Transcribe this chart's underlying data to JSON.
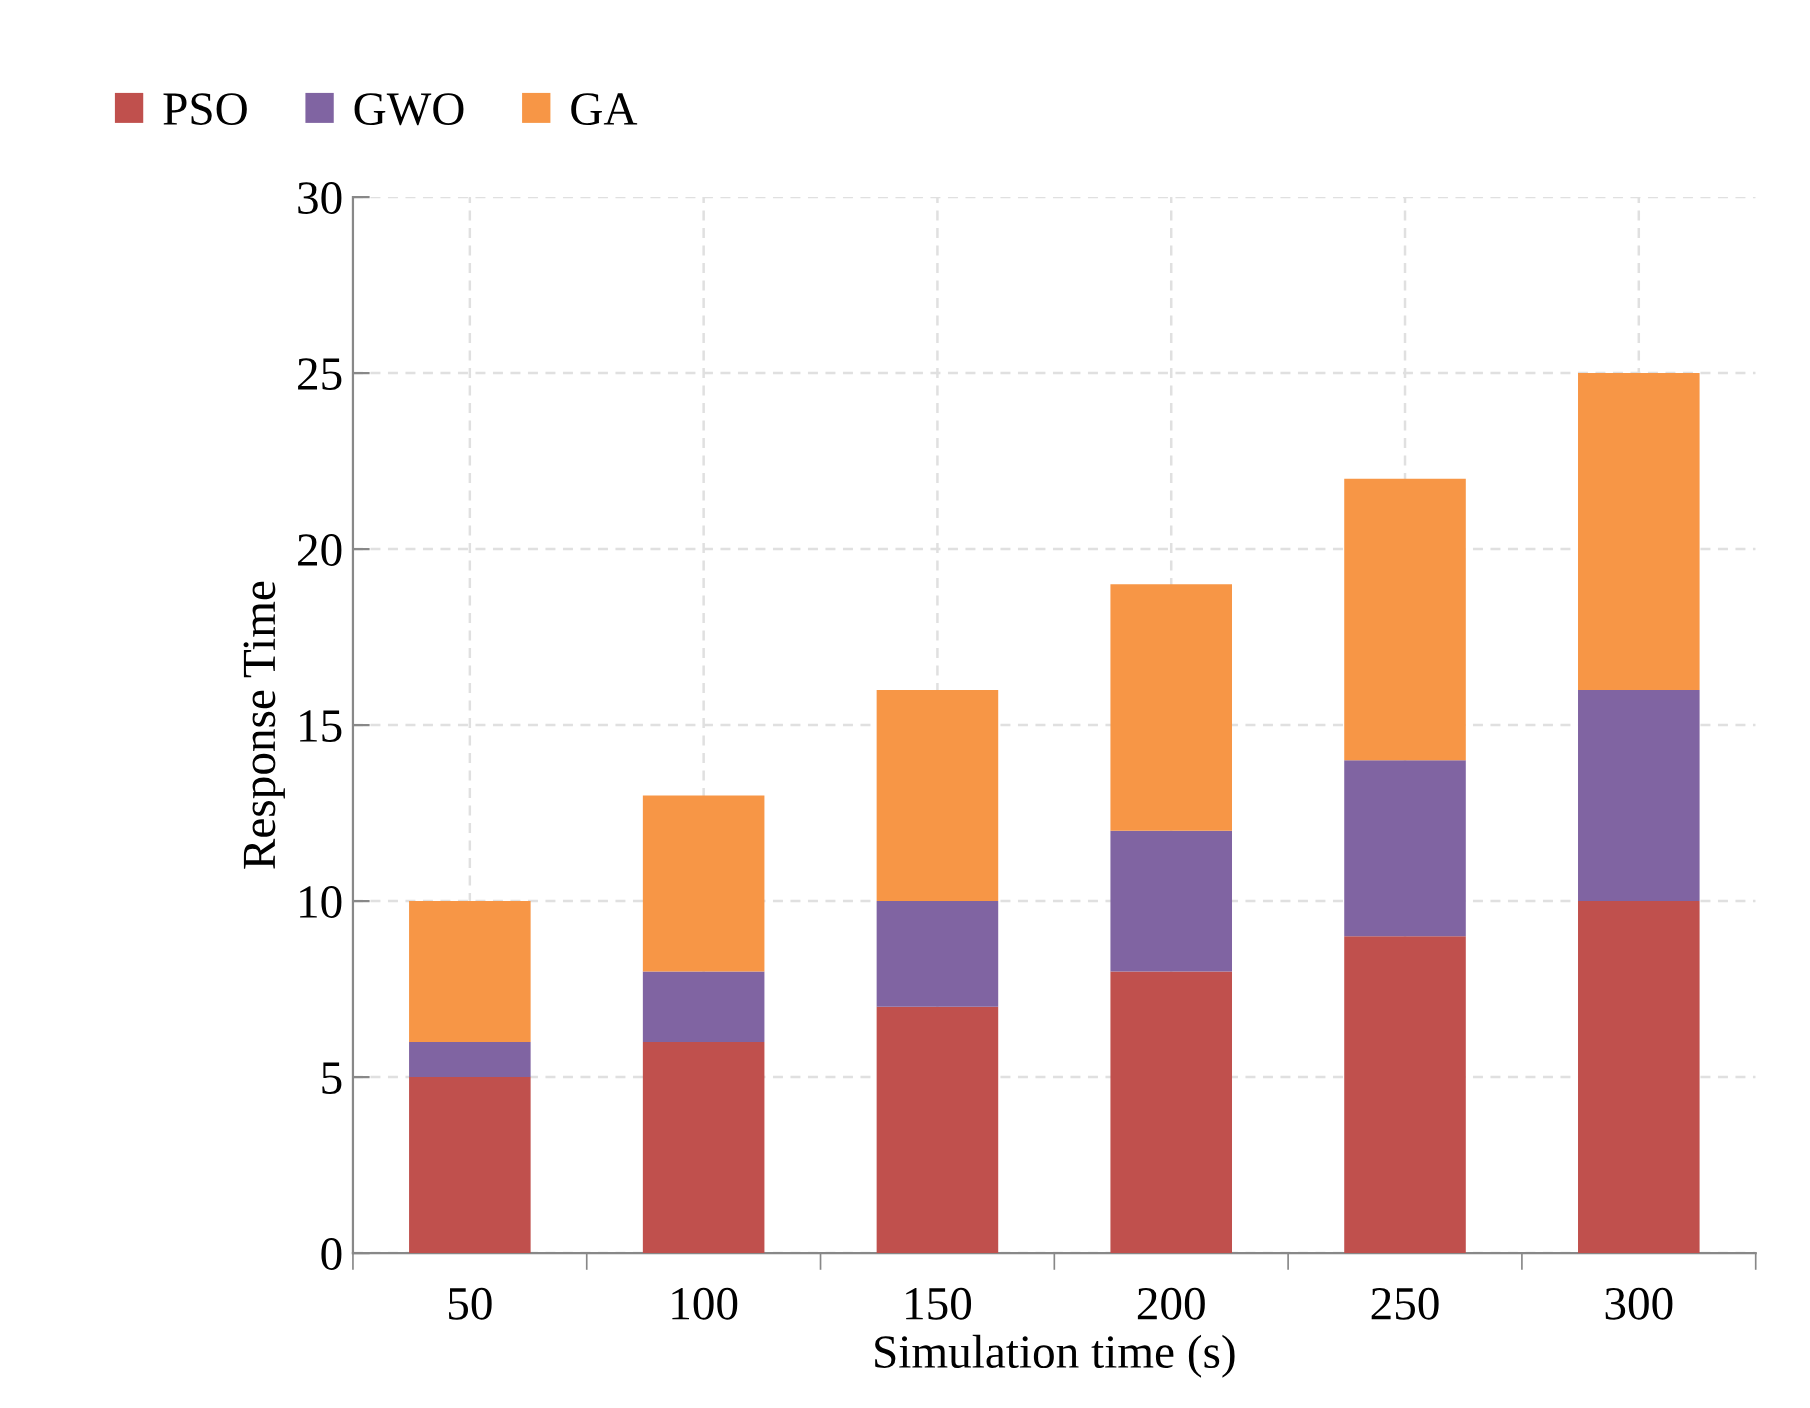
{
  "chart_data": {
    "type": "bar",
    "stacked": true,
    "xlabel": "Simulation time (s)",
    "ylabel": "Response Time",
    "categories": [
      "50",
      "100",
      "150",
      "200",
      "250",
      "300"
    ],
    "series": [
      {
        "name": "PSO",
        "color": "#c0504d",
        "values": [
          5,
          6,
          7,
          8,
          9,
          10
        ]
      },
      {
        "name": "GWO",
        "color": "#8064a2",
        "values": [
          1,
          2,
          3,
          4,
          5,
          6
        ]
      },
      {
        "name": "GA",
        "color": "#f79646",
        "values": [
          4,
          5,
          6,
          7,
          8,
          9
        ]
      }
    ],
    "ylim": [
      0,
      30
    ],
    "yticks": [
      0,
      5,
      10,
      15,
      20,
      25,
      30
    ],
    "grid": true,
    "legend": "top left"
  }
}
